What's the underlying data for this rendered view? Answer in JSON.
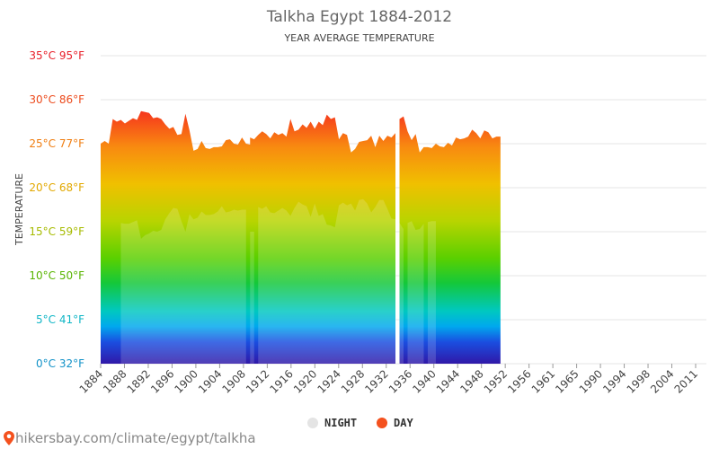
{
  "chart_data": {
    "type": "area",
    "title": "Talkha Egypt 1884-2012",
    "subtitle": "YEAR AVERAGE TEMPERATURE",
    "ylabel": "TEMPERATURE",
    "ylim": [
      0,
      35
    ],
    "y_ticks": [
      {
        "value": 35,
        "label": "35°C 95°F",
        "color": "#e8202a"
      },
      {
        "value": 30,
        "label": "30°C 86°F",
        "color": "#ec4a1c"
      },
      {
        "value": 25,
        "label": "25°C 77°F",
        "color": "#f07d10"
      },
      {
        "value": 20,
        "label": "20°C 68°F",
        "color": "#e2a800"
      },
      {
        "value": 15,
        "label": "15°C 59°F",
        "color": "#a6bb00"
      },
      {
        "value": 10,
        "label": "10°C 50°F",
        "color": "#58b400"
      },
      {
        "value": 5,
        "label": "5°C 41°F",
        "color": "#10b6c6"
      },
      {
        "value": 0,
        "label": "0°C 32°F",
        "color": "#1292c8"
      }
    ],
    "x_ticks": [
      "1884",
      "1888",
      "1892",
      "1896",
      "1900",
      "1904",
      "1908",
      "1912",
      "1916",
      "1920",
      "1924",
      "1928",
      "1932",
      "1936",
      "1940",
      "1944",
      "1948",
      "1952",
      "1956",
      "1961",
      "1965",
      "1990",
      "1994",
      "1998",
      "2004",
      "2011"
    ],
    "legend": {
      "position": "bottom-center",
      "entries": [
        {
          "name": "NIGHT",
          "color": "#e4e4e4"
        },
        {
          "name": "DAY",
          "color": "#f4511e"
        }
      ]
    },
    "grid": true,
    "series": [
      {
        "name": "DAY",
        "segments": [
          [
            25.0,
            25.3,
            25.0,
            27.8,
            27.5,
            27.7,
            27.3,
            27.6,
            27.9,
            27.7,
            28.7,
            28.6,
            28.5,
            27.9,
            28.0,
            27.8,
            27.2,
            26.7,
            26.9,
            26.0,
            26.1,
            28.4,
            26.5,
            24.2,
            24.4,
            25.3,
            24.5,
            24.4,
            24.6,
            24.6,
            24.7,
            25.4,
            25.5,
            25.0,
            24.9,
            25.7,
            25.0,
            24.9,
            25.5
          ],
          [
            25.7,
            25.5,
            26.0,
            26.4,
            26.1,
            25.6,
            26.3,
            26.0,
            26.2,
            25.8,
            27.8,
            26.4,
            26.6,
            27.2,
            26.8,
            27.5,
            26.7,
            27.5,
            27.1,
            28.3,
            27.8,
            28.0,
            25.5,
            26.2,
            26.0,
            24.0,
            24.4,
            25.2,
            25.3,
            25.4,
            25.9,
            24.6,
            25.9,
            25.3,
            25.9,
            25.7,
            26.2
          ],
          [
            27.8,
            28.1,
            26.4,
            25.4,
            26.1,
            24.0,
            24.6,
            24.6,
            24.5,
            25.0,
            24.7,
            24.6,
            25.1,
            24.8,
            25.7,
            25.5,
            25.6,
            25.8,
            26.6,
            26.2,
            25.6,
            26.5,
            26.3,
            25.6,
            25.8,
            25.8
          ]
        ]
      },
      {
        "name": "NIGHT",
        "segments": [
          [
            16.0,
            15.9,
            15.9,
            16.1,
            16.3,
            14.2,
            14.6,
            14.8,
            15.1,
            15.0,
            15.2,
            16.4,
            17.1,
            17.7,
            17.6,
            16.2,
            15.0,
            17.0,
            16.4,
            16.6,
            17.3,
            16.9,
            16.9,
            17.0,
            17.3,
            17.9,
            17.2,
            17.3,
            17.5,
            17.4,
            17.5,
            17.5
          ],
          [
            15.0,
            15.0
          ],
          [
            17.8,
            17.6,
            17.9,
            17.2,
            17.1,
            17.4,
            17.7,
            17.4,
            16.8,
            17.7,
            18.4,
            18.1,
            17.9,
            16.7,
            18.2,
            16.8,
            17.0,
            15.8,
            15.7,
            15.5,
            18.0,
            18.3,
            18.0,
            18.2,
            17.4,
            18.6,
            18.7,
            18.2,
            17.2,
            17.8,
            18.6,
            18.6,
            17.6,
            16.5,
            16.4,
            16.0,
            15.3
          ],
          [
            16.0,
            16.2,
            15.2,
            15.3,
            15.9
          ],
          [
            16.1,
            16.2,
            16.2
          ]
        ]
      }
    ]
  },
  "footer": {
    "source": "hikersbay.com/climate/egypt/talkha"
  }
}
